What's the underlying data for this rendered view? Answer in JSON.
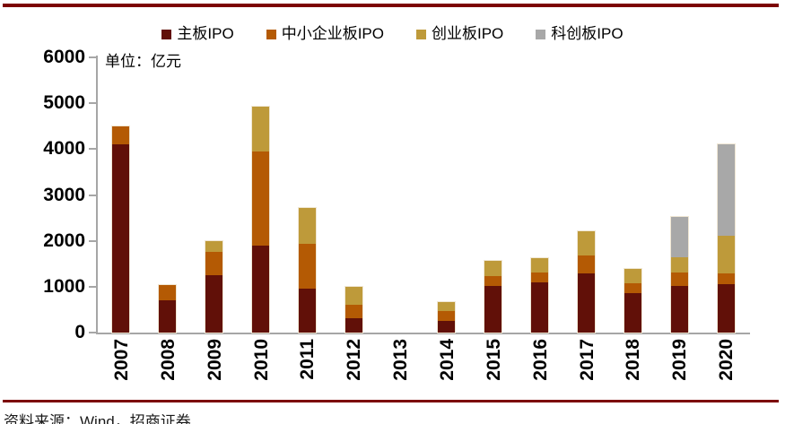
{
  "page": {
    "background": "#ffffff",
    "accent_rule_color": "#7C0302"
  },
  "unit_label": "单位：亿元",
  "chart_data": {
    "type": "bar",
    "stacked": true,
    "title": "",
    "y_unit": "亿元",
    "categories": [
      "2007",
      "2008",
      "2009",
      "2010",
      "2011",
      "2012",
      "2013",
      "2014",
      "2015",
      "2016",
      "2017",
      "2018",
      "2019",
      "2020"
    ],
    "series": [
      {
        "name": "主板IPO",
        "color": "#611008",
        "values": [
          4100,
          700,
          1260,
          1900,
          950,
          320,
          0,
          260,
          1020,
          1090,
          1290,
          860,
          1010,
          1060
        ]
      },
      {
        "name": "中小企业板IPO",
        "color": "#B45A04",
        "values": [
          400,
          330,
          490,
          2050,
          990,
          280,
          0,
          210,
          210,
          220,
          390,
          220,
          300,
          230
        ]
      },
      {
        "name": "创业板IPO",
        "color": "#BE9A3A",
        "values": [
          0,
          0,
          250,
          970,
          780,
          390,
          0,
          190,
          330,
          320,
          520,
          300,
          340,
          830
        ]
      },
      {
        "name": "科创板IPO",
        "color": "#A8A8A8",
        "values": [
          0,
          0,
          0,
          0,
          0,
          0,
          0,
          0,
          0,
          0,
          0,
          0,
          880,
          1990
        ]
      }
    ],
    "ylim": [
      0,
      6000
    ],
    "yticks": [
      0,
      1000,
      2000,
      3000,
      4000,
      5000,
      6000
    ],
    "grid": false,
    "legend_position": "top",
    "axis_color": "#A6A6A6"
  },
  "footer": {
    "source_text": "资料来源：Wind，招商证券"
  }
}
